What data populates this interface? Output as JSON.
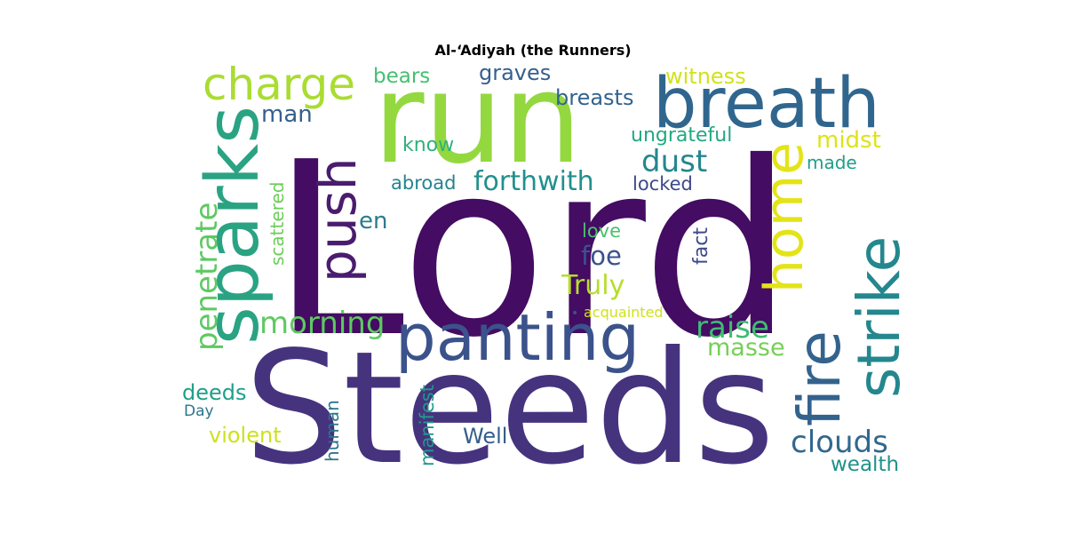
{
  "title": "Al-‘Adiyah (the Runners)",
  "words": [
    {
      "text": "Lord",
      "color": "#440c62",
      "vertical": false
    },
    {
      "text": "Steeds",
      "color": "#46337e",
      "vertical": false
    },
    {
      "text": "run",
      "color": "#94d840",
      "vertical": false
    },
    {
      "text": "breath",
      "color": "#30668e",
      "vertical": false
    },
    {
      "text": "panting",
      "color": "#3b528b",
      "vertical": false
    },
    {
      "text": "sparks",
      "color": "#2aa383",
      "vertical": true
    },
    {
      "text": "strike",
      "color": "#24878e",
      "vertical": true
    },
    {
      "text": "home",
      "color": "#e3e418",
      "vertical": true
    },
    {
      "text": "fire",
      "color": "#33638d",
      "vertical": true
    },
    {
      "text": "push",
      "color": "#4a1c6e",
      "vertical": true
    },
    {
      "text": "charge",
      "color": "#aadc32",
      "vertical": false
    },
    {
      "text": "morning",
      "color": "#5ec962",
      "vertical": false
    },
    {
      "text": "clouds",
      "color": "#31688e",
      "vertical": false
    },
    {
      "text": "penetrate",
      "color": "#5ec962",
      "vertical": true
    },
    {
      "text": "raise",
      "color": "#3fbc73",
      "vertical": false
    },
    {
      "text": "dust",
      "color": "#24868e",
      "vertical": false
    },
    {
      "text": "forthwith",
      "color": "#21908d",
      "vertical": false
    },
    {
      "text": "Truly",
      "color": "#b5de2b",
      "vertical": false
    },
    {
      "text": "masse",
      "color": "#75d054",
      "vertical": false
    },
    {
      "text": "foe",
      "color": "#3b528b",
      "vertical": false
    },
    {
      "text": "man",
      "color": "#355f8d",
      "vertical": false
    },
    {
      "text": "midst",
      "color": "#dde318",
      "vertical": false
    },
    {
      "text": "en",
      "color": "#287c8e",
      "vertical": false
    },
    {
      "text": "violent",
      "color": "#cde11d",
      "vertical": false
    },
    {
      "text": "deeds",
      "color": "#1fa088",
      "vertical": false
    },
    {
      "text": "wealth",
      "color": "#21918c",
      "vertical": false
    },
    {
      "text": "Well",
      "color": "#355e8d",
      "vertical": false
    },
    {
      "text": "graves",
      "color": "#355f8d",
      "vertical": false
    },
    {
      "text": "breasts",
      "color": "#33638d",
      "vertical": false
    },
    {
      "text": "witness",
      "color": "#d2e21b",
      "vertical": false
    },
    {
      "text": "bears",
      "color": "#44bf70",
      "vertical": false
    },
    {
      "text": "ungrateful",
      "color": "#22a884",
      "vertical": false
    },
    {
      "text": "know",
      "color": "#2db27d",
      "vertical": false
    },
    {
      "text": "abroad",
      "color": "#25848e",
      "vertical": false
    },
    {
      "text": "locked",
      "color": "#3e4989",
      "vertical": false
    },
    {
      "text": "made",
      "color": "#1f9e89",
      "vertical": false
    },
    {
      "text": "love",
      "color": "#4ac16d",
      "vertical": false
    },
    {
      "text": "fact",
      "color": "#3e4c8a",
      "vertical": true
    },
    {
      "text": "scattered",
      "color": "#6ccd5a",
      "vertical": true
    },
    {
      "text": "human",
      "color": "#2b758e",
      "vertical": true
    },
    {
      "text": "manifest",
      "color": "#1f9a8a",
      "vertical": true
    },
    {
      "text": "Day",
      "color": "#2b758e",
      "vertical": false
    },
    {
      "text": "acquainted",
      "color": "#d0e11c",
      "vertical": false
    },
    {
      "text": "•",
      "color": "#3b528b",
      "vertical": false
    }
  ]
}
